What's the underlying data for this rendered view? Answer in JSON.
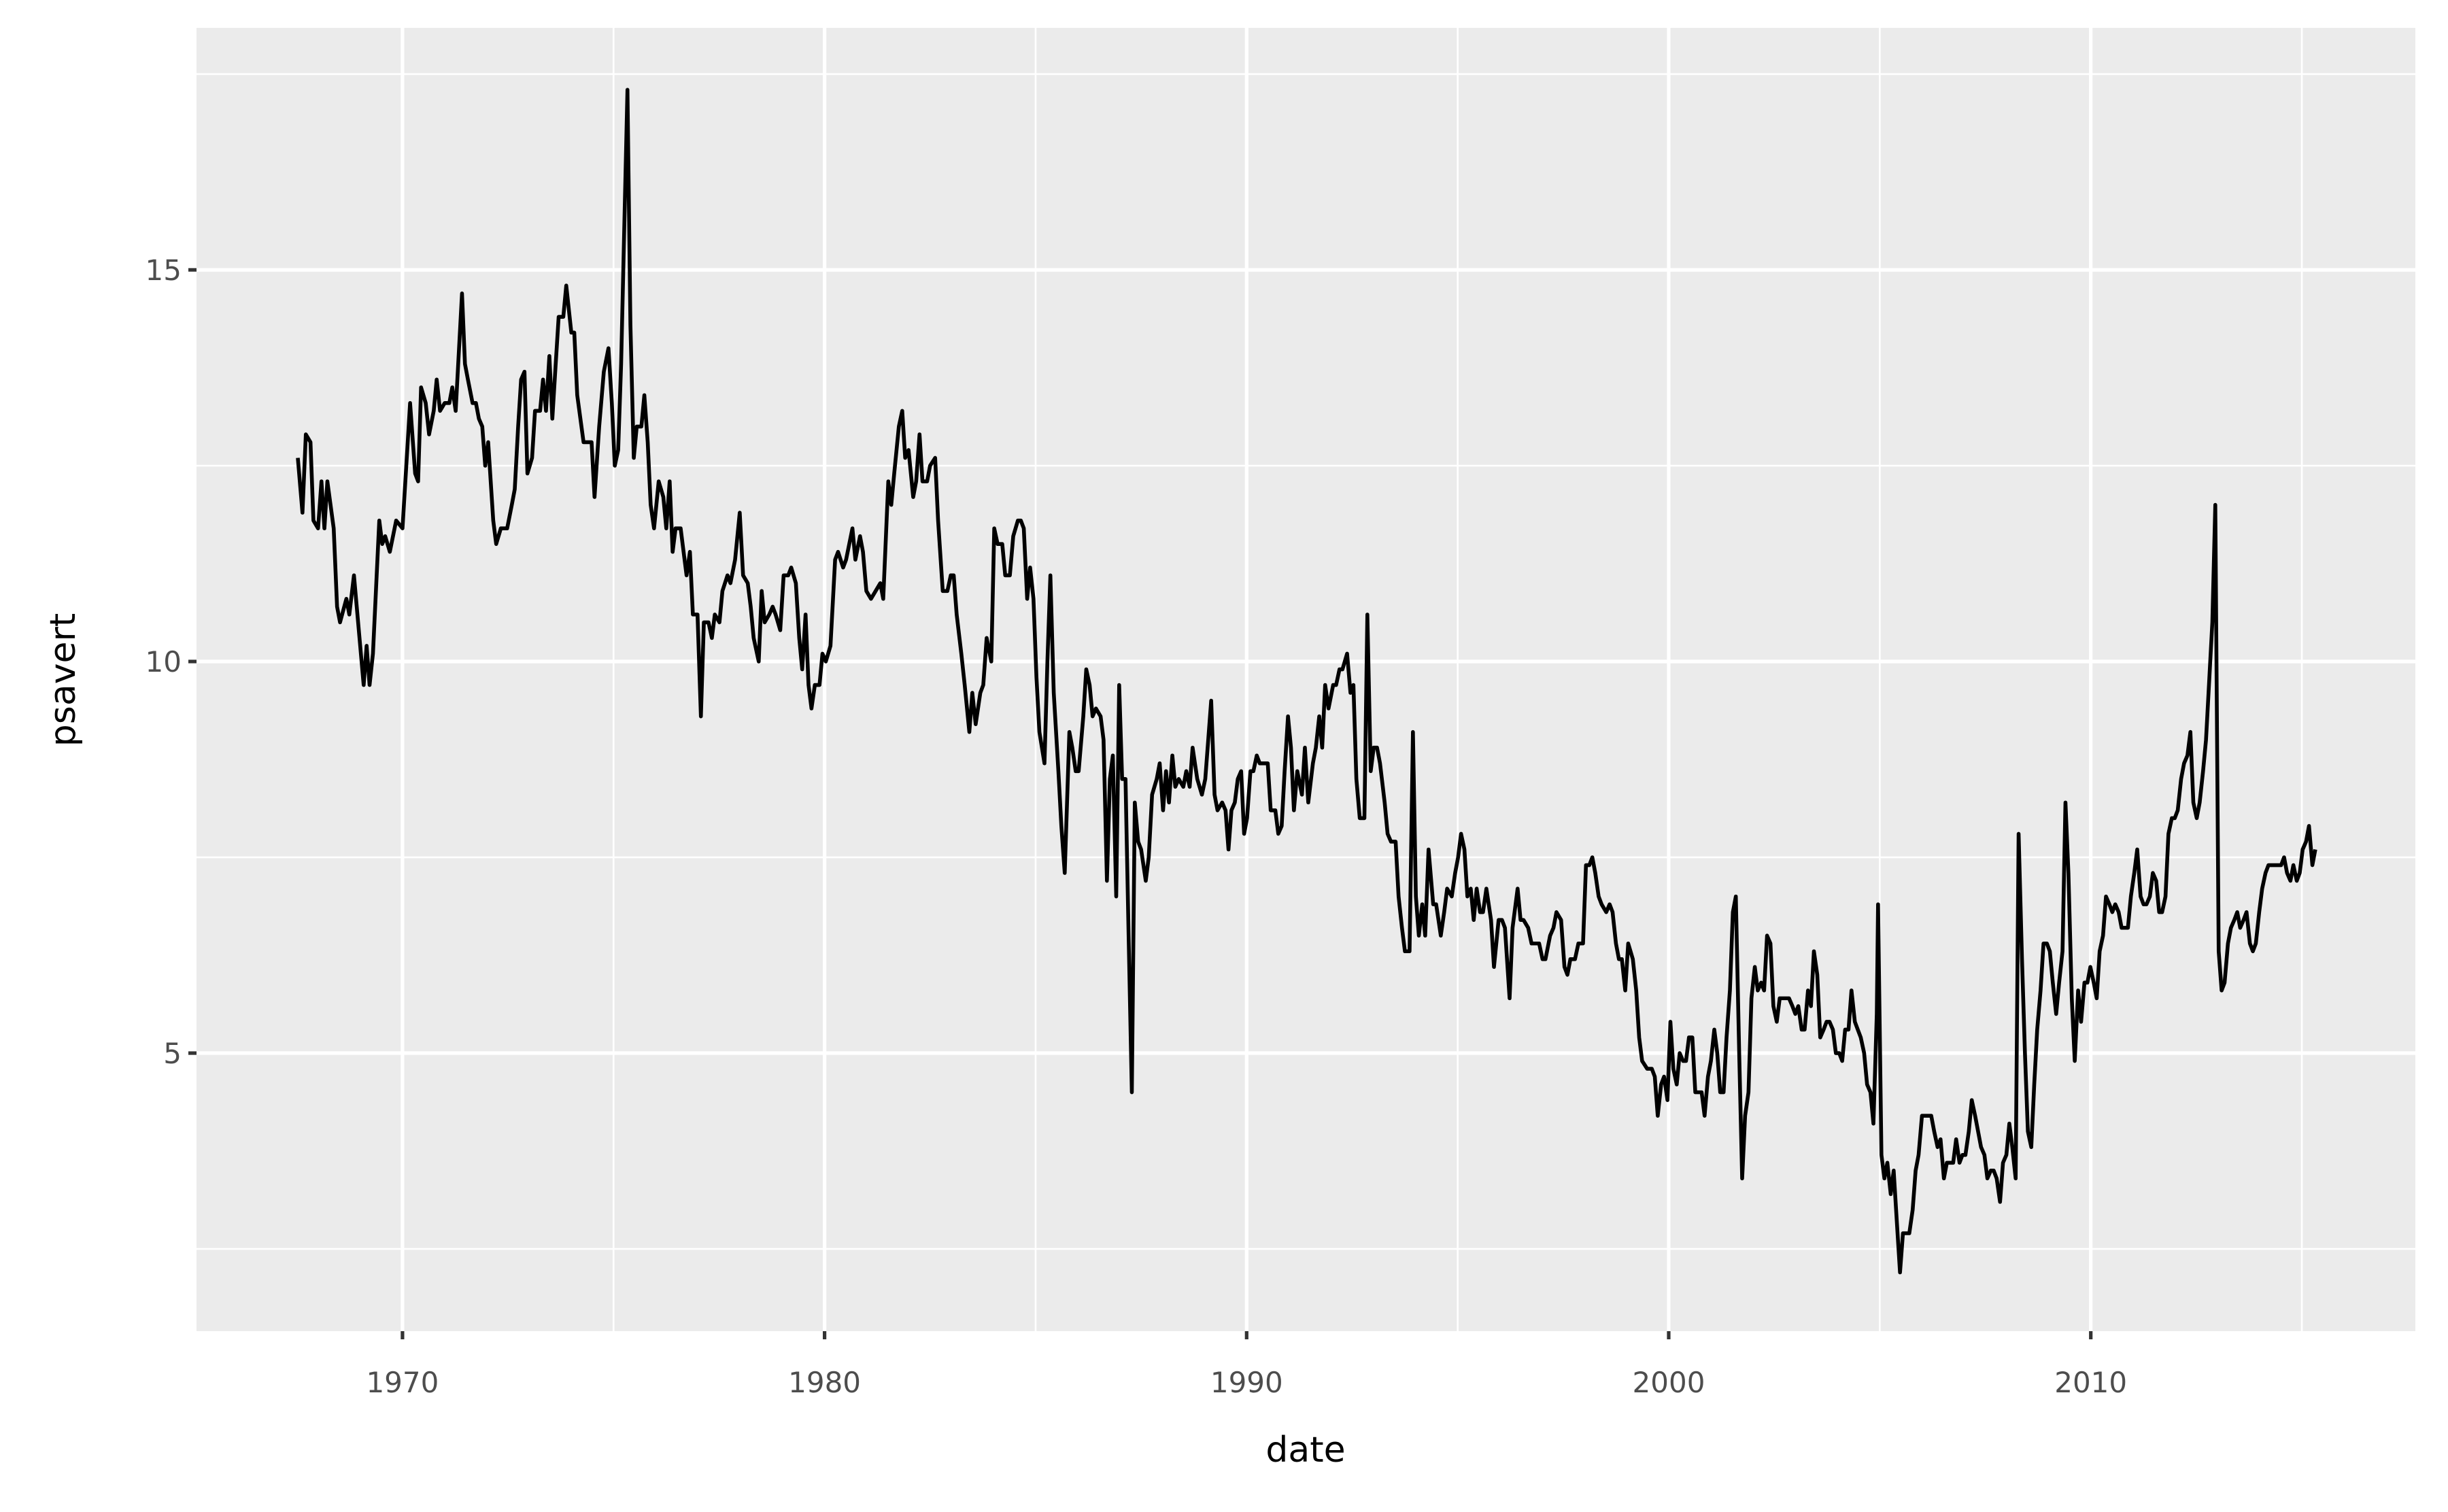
{
  "chart_data": {
    "type": "line",
    "x_label": "date",
    "y_label": "psavert",
    "color": "#000000",
    "xlim": [
      1965.12,
      2017.69
    ],
    "ylim": [
      1.45,
      18.09
    ],
    "xticks": [
      1970,
      1980,
      1990,
      2000,
      2010
    ],
    "yticks": [
      5,
      10,
      15
    ],
    "xminorticks": [
      1975,
      1985,
      1995,
      2005,
      2015
    ],
    "yminorticks": [
      2.5,
      7.5,
      12.5,
      17.5
    ],
    "grid": true,
    "x": [
      1967.52,
      1967.63,
      1967.71,
      1967.82,
      1967.89,
      1968.0,
      1968.08,
      1968.15,
      1968.22,
      1968.37,
      1968.45,
      1968.52,
      1968.67,
      1968.74,
      1968.85,
      1969.08,
      1969.15,
      1969.22,
      1969.3,
      1969.45,
      1969.52,
      1969.59,
      1969.7,
      1969.85,
      1970.0,
      1970.18,
      1970.3,
      1970.37,
      1970.44,
      1970.55,
      1970.63,
      1970.74,
      1970.81,
      1970.89,
      1971.0,
      1971.11,
      1971.18,
      1971.26,
      1971.41,
      1971.48,
      1971.55,
      1971.66,
      1971.74,
      1971.81,
      1971.89,
      1971.96,
      1972.03,
      1972.15,
      1972.22,
      1972.33,
      1972.48,
      1972.59,
      1972.66,
      1972.74,
      1972.81,
      1972.89,
      1972.96,
      1973.07,
      1973.14,
      1973.26,
      1973.33,
      1973.4,
      1973.48,
      1973.55,
      1973.63,
      1973.7,
      1973.81,
      1973.88,
      1974.0,
      1974.07,
      1974.14,
      1974.29,
      1974.48,
      1974.55,
      1974.66,
      1974.77,
      1974.88,
      1974.96,
      1975.03,
      1975.11,
      1975.18,
      1975.33,
      1975.4,
      1975.48,
      1975.55,
      1975.66,
      1975.73,
      1975.81,
      1975.88,
      1975.96,
      1976.07,
      1976.18,
      1976.25,
      1976.33,
      1976.4,
      1976.47,
      1976.59,
      1976.66,
      1976.73,
      1976.81,
      1976.88,
      1976.99,
      1977.07,
      1977.14,
      1977.25,
      1977.33,
      1977.4,
      1977.51,
      1977.58,
      1977.7,
      1977.77,
      1977.88,
      1977.99,
      1978.07,
      1978.18,
      1978.25,
      1978.32,
      1978.44,
      1978.51,
      1978.58,
      1978.69,
      1978.77,
      1978.84,
      1978.95,
      1979.03,
      1979.14,
      1979.21,
      1979.32,
      1979.4,
      1979.47,
      1979.55,
      1979.62,
      1979.69,
      1979.77,
      1979.88,
      1979.95,
      1980.03,
      1980.14,
      1980.25,
      1980.32,
      1980.44,
      1980.51,
      1980.66,
      1980.73,
      1980.84,
      1980.91,
      1980.99,
      1981.1,
      1981.21,
      1981.32,
      1981.39,
      1981.51,
      1981.58,
      1981.65,
      1981.76,
      1981.84,
      1981.91,
      1981.99,
      1982.1,
      1982.17,
      1982.25,
      1982.32,
      1982.43,
      1982.5,
      1982.62,
      1982.69,
      1982.8,
      1982.91,
      1982.99,
      1983.06,
      1983.13,
      1983.24,
      1983.32,
      1983.43,
      1983.5,
      1983.58,
      1983.69,
      1983.76,
      1983.84,
      1983.95,
      1984.02,
      1984.1,
      1984.21,
      1984.28,
      1984.39,
      1984.47,
      1984.58,
      1984.65,
      1984.72,
      1984.8,
      1984.87,
      1984.95,
      1985.02,
      1985.09,
      1985.21,
      1985.28,
      1985.35,
      1985.43,
      1985.54,
      1985.61,
      1985.69,
      1985.8,
      1985.87,
      1985.95,
      1986.02,
      1986.13,
      1986.2,
      1986.28,
      1986.35,
      1986.43,
      1986.54,
      1986.61,
      1986.69,
      1986.76,
      1986.83,
      1986.91,
      1986.98,
      1987.05,
      1987.13,
      1987.2,
      1987.28,
      1987.35,
      1987.43,
      1987.5,
      1987.61,
      1987.68,
      1987.76,
      1987.87,
      1987.94,
      1988.02,
      1988.09,
      1988.16,
      1988.24,
      1988.31,
      1988.39,
      1988.5,
      1988.57,
      1988.65,
      1988.72,
      1988.83,
      1988.94,
      1989.02,
      1989.09,
      1989.16,
      1989.24,
      1989.31,
      1989.42,
      1989.5,
      1989.57,
      1989.64,
      1989.72,
      1989.79,
      1989.87,
      1989.94,
      1990.01,
      1990.09,
      1990.16,
      1990.24,
      1990.31,
      1990.42,
      1990.5,
      1990.57,
      1990.68,
      1990.75,
      1990.83,
      1990.9,
      1990.98,
      1991.05,
      1991.12,
      1991.2,
      1991.31,
      1991.38,
      1991.46,
      1991.57,
      1991.64,
      1991.72,
      1991.79,
      1991.86,
      1991.94,
      1992.05,
      1992.12,
      1992.2,
      1992.27,
      1992.38,
      1992.46,
      1992.53,
      1992.6,
      1992.68,
      1992.79,
      1992.86,
      1992.94,
      1993.01,
      1993.09,
      1993.16,
      1993.27,
      1993.34,
      1993.42,
      1993.53,
      1993.6,
      1993.68,
      1993.75,
      1993.86,
      1993.94,
      1994.01,
      1994.08,
      1994.16,
      1994.23,
      1994.31,
      1994.42,
      1994.49,
      1994.6,
      1994.68,
      1994.75,
      1994.86,
      1994.94,
      1995.01,
      1995.08,
      1995.16,
      1995.23,
      1995.31,
      1995.38,
      1995.45,
      1995.53,
      1995.6,
      1995.68,
      1995.79,
      1995.86,
      1995.97,
      1996.05,
      1996.12,
      1996.23,
      1996.3,
      1996.42,
      1996.49,
      1996.56,
      1996.67,
      1996.75,
      1996.86,
      1996.93,
      1997.01,
      1997.08,
      1997.19,
      1997.27,
      1997.34,
      1997.45,
      1997.53,
      1997.6,
      1997.67,
      1997.78,
      1997.86,
      1997.97,
      1998.04,
      1998.12,
      1998.19,
      1998.26,
      1998.34,
      1998.41,
      1998.52,
      1998.6,
      1998.67,
      1998.75,
      1998.82,
      1998.89,
      1998.97,
      1999.04,
      1999.15,
      1999.23,
      1999.3,
      1999.37,
      1999.49,
      1999.6,
      1999.67,
      1999.74,
      1999.82,
      1999.89,
      1999.97,
      2000.04,
      2000.11,
      2000.19,
      2000.26,
      2000.34,
      2000.41,
      2000.48,
      2000.56,
      2000.63,
      2000.71,
      2000.78,
      2000.85,
      2000.93,
      2001.0,
      2001.08,
      2001.15,
      2001.22,
      2001.3,
      2001.37,
      2001.45,
      2001.52,
      2001.59,
      2001.67,
      2001.74,
      2001.81,
      2001.89,
      2001.96,
      2002.04,
      2002.11,
      2002.19,
      2002.26,
      2002.33,
      2002.41,
      2002.48,
      2002.56,
      2002.63,
      2002.74,
      2002.85,
      2002.93,
      2003.0,
      2003.07,
      2003.15,
      2003.22,
      2003.3,
      2003.37,
      2003.44,
      2003.52,
      2003.59,
      2003.67,
      2003.74,
      2003.81,
      2003.89,
      2003.96,
      2004.04,
      2004.11,
      2004.18,
      2004.26,
      2004.33,
      2004.41,
      2004.48,
      2004.55,
      2004.63,
      2004.7,
      2004.78,
      2004.85,
      2004.93,
      2004.96,
      2005.04,
      2005.11,
      2005.18,
      2005.26,
      2005.33,
      2005.41,
      2005.48,
      2005.55,
      2005.63,
      2005.7,
      2005.78,
      2005.85,
      2005.92,
      2006.0,
      2006.07,
      2006.15,
      2006.22,
      2006.29,
      2006.37,
      2006.44,
      2006.52,
      2006.59,
      2006.66,
      2006.74,
      2006.81,
      2006.89,
      2006.96,
      2007.03,
      2007.11,
      2007.18,
      2007.26,
      2007.33,
      2007.4,
      2007.48,
      2007.55,
      2007.63,
      2007.7,
      2007.77,
      2007.85,
      2007.92,
      2008.0,
      2008.07,
      2008.14,
      2008.22,
      2008.29,
      2008.37,
      2008.44,
      2008.51,
      2008.59,
      2008.66,
      2008.73,
      2008.81,
      2008.88,
      2008.96,
      2009.03,
      2009.1,
      2009.18,
      2009.25,
      2009.33,
      2009.4,
      2009.47,
      2009.55,
      2009.62,
      2009.7,
      2009.77,
      2009.85,
      2009.92,
      2009.99,
      2010.07,
      2010.14,
      2010.21,
      2010.29,
      2010.36,
      2010.44,
      2010.51,
      2010.58,
      2010.66,
      2010.73,
      2010.81,
      2010.88,
      2010.95,
      2011.03,
      2011.1,
      2011.18,
      2011.25,
      2011.32,
      2011.4,
      2011.47,
      2011.55,
      2011.62,
      2011.69,
      2011.77,
      2011.84,
      2011.92,
      2011.99,
      2012.06,
      2012.14,
      2012.21,
      2012.29,
      2012.36,
      2012.43,
      2012.51,
      2012.58,
      2012.66,
      2012.73,
      2012.8,
      2012.88,
      2012.95,
      2013.03,
      2013.1,
      2013.17,
      2013.25,
      2013.32,
      2013.4,
      2013.47,
      2013.54,
      2013.62,
      2013.69,
      2013.77,
      2013.84,
      2013.91,
      2013.99,
      2014.06,
      2014.14,
      2014.21,
      2014.28,
      2014.36,
      2014.43,
      2014.51,
      2014.58,
      2014.65,
      2014.73,
      2014.8,
      2014.88,
      2014.95,
      2015.02,
      2015.1,
      2015.17,
      2015.25,
      2015.32
    ],
    "values": [
      12.6,
      11.9,
      12.9,
      12.8,
      11.8,
      11.7,
      12.3,
      11.7,
      12.3,
      11.7,
      10.7,
      10.5,
      10.8,
      10.6,
      11.1,
      9.7,
      10.2,
      9.7,
      10.1,
      11.8,
      11.5,
      11.6,
      11.4,
      11.8,
      11.7,
      13.3,
      12.4,
      12.3,
      13.5,
      13.3,
      12.9,
      13.2,
      13.6,
      13.2,
      13.3,
      13.3,
      13.5,
      13.2,
      14.7,
      13.8,
      13.6,
      13.3,
      13.3,
      13.1,
      13.0,
      12.5,
      12.8,
      11.8,
      11.5,
      11.7,
      11.7,
      12.0,
      12.2,
      13.0,
      13.6,
      13.7,
      12.4,
      12.6,
      13.2,
      13.2,
      13.6,
      13.2,
      13.9,
      13.1,
      13.8,
      14.4,
      14.4,
      14.8,
      14.2,
      14.2,
      13.4,
      12.8,
      12.8,
      12.1,
      13.0,
      13.7,
      14.0,
      13.3,
      12.5,
      12.7,
      13.8,
      17.3,
      14.3,
      12.6,
      13.0,
      13.0,
      13.4,
      12.8,
      12.0,
      11.7,
      12.3,
      12.1,
      11.7,
      12.3,
      11.4,
      11.7,
      11.7,
      11.4,
      11.1,
      11.4,
      10.6,
      10.6,
      9.3,
      10.5,
      10.5,
      10.3,
      10.6,
      10.5,
      10.9,
      11.1,
      11.0,
      11.3,
      11.9,
      11.1,
      11.0,
      10.7,
      10.3,
      10.0,
      10.9,
      10.5,
      10.6,
      10.7,
      10.6,
      10.4,
      11.1,
      11.1,
      11.2,
      11.0,
      10.3,
      9.9,
      10.6,
      9.7,
      9.4,
      9.7,
      9.7,
      10.1,
      10.0,
      10.2,
      11.3,
      11.4,
      11.2,
      11.3,
      11.7,
      11.3,
      11.6,
      11.4,
      10.9,
      10.8,
      10.9,
      11.0,
      10.8,
      12.3,
      12.0,
      12.4,
      13.0,
      13.2,
      12.6,
      12.7,
      12.1,
      12.3,
      12.9,
      12.3,
      12.3,
      12.5,
      12.6,
      11.8,
      10.9,
      10.9,
      11.1,
      11.1,
      10.6,
      10.1,
      9.7,
      9.1,
      9.6,
      9.2,
      9.6,
      9.7,
      10.3,
      10.0,
      11.7,
      11.5,
      11.5,
      11.1,
      11.1,
      11.6,
      11.8,
      11.8,
      11.7,
      10.8,
      11.2,
      10.8,
      9.8,
      9.1,
      8.7,
      10.0,
      11.1,
      9.6,
      8.6,
      7.9,
      7.3,
      9.1,
      8.9,
      8.6,
      8.6,
      9.3,
      9.9,
      9.7,
      9.3,
      9.4,
      9.3,
      9.0,
      7.2,
      8.5,
      8.8,
      7.0,
      9.7,
      8.5,
      8.5,
      6.6,
      4.5,
      8.2,
      7.7,
      7.6,
      7.2,
      7.5,
      8.3,
      8.5,
      8.7,
      8.1,
      8.6,
      8.2,
      8.8,
      8.4,
      8.5,
      8.4,
      8.6,
      8.4,
      8.9,
      8.5,
      8.3,
      8.5,
      9.0,
      9.5,
      8.3,
      8.1,
      8.2,
      8.1,
      7.6,
      8.1,
      8.2,
      8.5,
      8.6,
      7.8,
      8.0,
      8.6,
      8.6,
      8.8,
      8.7,
      8.7,
      8.7,
      8.1,
      8.1,
      7.8,
      7.9,
      8.6,
      9.3,
      8.9,
      8.1,
      8.6,
      8.3,
      8.9,
      8.2,
      8.7,
      8.9,
      9.3,
      8.9,
      9.7,
      9.4,
      9.7,
      9.7,
      9.9,
      9.9,
      10.1,
      9.6,
      9.7,
      8.5,
      8.0,
      8.0,
      10.6,
      8.6,
      8.9,
      8.9,
      8.7,
      8.2,
      7.8,
      7.7,
      7.7,
      7.0,
      6.6,
      6.3,
      6.3,
      9.1,
      7.0,
      6.5,
      6.9,
      6.5,
      7.6,
      6.9,
      6.9,
      6.5,
      6.8,
      7.1,
      7.0,
      7.3,
      7.5,
      7.8,
      7.6,
      7.0,
      7.1,
      6.7,
      7.1,
      6.8,
      6.8,
      7.1,
      6.7,
      6.1,
      6.7,
      6.7,
      6.6,
      5.7,
      6.6,
      7.1,
      6.7,
      6.7,
      6.6,
      6.4,
      6.4,
      6.4,
      6.2,
      6.2,
      6.5,
      6.6,
      6.8,
      6.7,
      6.1,
      6.0,
      6.2,
      6.2,
      6.4,
      6.4,
      7.4,
      7.4,
      7.5,
      7.3,
      7.0,
      6.9,
      6.8,
      6.9,
      6.8,
      6.4,
      6.2,
      6.2,
      5.8,
      6.4,
      6.2,
      5.8,
      5.2,
      4.9,
      4.8,
      4.8,
      4.7,
      4.2,
      4.6,
      4.7,
      4.4,
      5.4,
      4.8,
      4.6,
      5.0,
      4.9,
      4.9,
      5.2,
      5.2,
      4.5,
      4.5,
      4.5,
      4.2,
      4.7,
      4.9,
      5.3,
      5.0,
      4.5,
      4.5,
      5.2,
      5.8,
      6.8,
      7.0,
      5.0,
      3.4,
      4.2,
      4.5,
      5.7,
      6.1,
      5.8,
      5.9,
      5.8,
      6.5,
      6.4,
      5.6,
      5.4,
      5.7,
      5.7,
      5.7,
      5.6,
      5.5,
      5.6,
      5.3,
      5.3,
      5.8,
      5.6,
      6.3,
      6.0,
      5.2,
      5.3,
      5.4,
      5.4,
      5.3,
      5.0,
      5.0,
      4.9,
      5.3,
      5.3,
      5.8,
      5.4,
      5.3,
      5.2,
      5.0,
      4.6,
      4.5,
      4.1,
      5.5,
      6.9,
      3.7,
      3.4,
      3.6,
      3.2,
      3.5,
      2.8,
      2.2,
      2.7,
      2.7,
      2.7,
      3.0,
      3.5,
      3.7,
      4.2,
      4.2,
      4.2,
      4.2,
      4.0,
      3.8,
      3.9,
      3.4,
      3.6,
      3.6,
      3.6,
      3.9,
      3.6,
      3.7,
      3.7,
      4.0,
      4.4,
      4.2,
      4.0,
      3.8,
      3.7,
      3.4,
      3.5,
      3.5,
      3.4,
      3.1,
      3.6,
      3.7,
      4.1,
      3.8,
      3.4,
      7.8,
      6.2,
      5.0,
      4.0,
      3.8,
      4.6,
      5.3,
      5.8,
      6.4,
      6.4,
      6.3,
      5.9,
      5.5,
      5.9,
      6.3,
      8.2,
      7.3,
      5.7,
      4.9,
      5.8,
      5.4,
      5.9,
      5.9,
      6.1,
      5.9,
      5.7,
      6.3,
      6.5,
      7.0,
      6.9,
      6.8,
      6.9,
      6.8,
      6.6,
      6.6,
      6.6,
      7.0,
      7.3,
      7.6,
      7.0,
      6.9,
      6.9,
      7.0,
      7.3,
      7.2,
      6.8,
      6.8,
      7.0,
      7.8,
      8.0,
      8.0,
      8.1,
      8.5,
      8.7,
      8.8,
      9.1,
      8.2,
      8.0,
      8.2,
      8.6,
      9.0,
      9.7,
      10.5,
      12.0,
      6.3,
      5.8,
      5.9,
      6.4,
      6.6,
      6.7,
      6.8,
      6.6,
      6.7,
      6.8,
      6.4,
      6.3,
      6.4,
      6.8,
      7.1,
      7.3,
      7.4,
      7.4,
      7.4,
      7.4,
      7.4,
      7.5,
      7.3,
      7.2,
      7.4,
      7.2,
      7.3,
      7.6,
      7.7,
      7.9,
      7.4,
      7.6
    ]
  }
}
